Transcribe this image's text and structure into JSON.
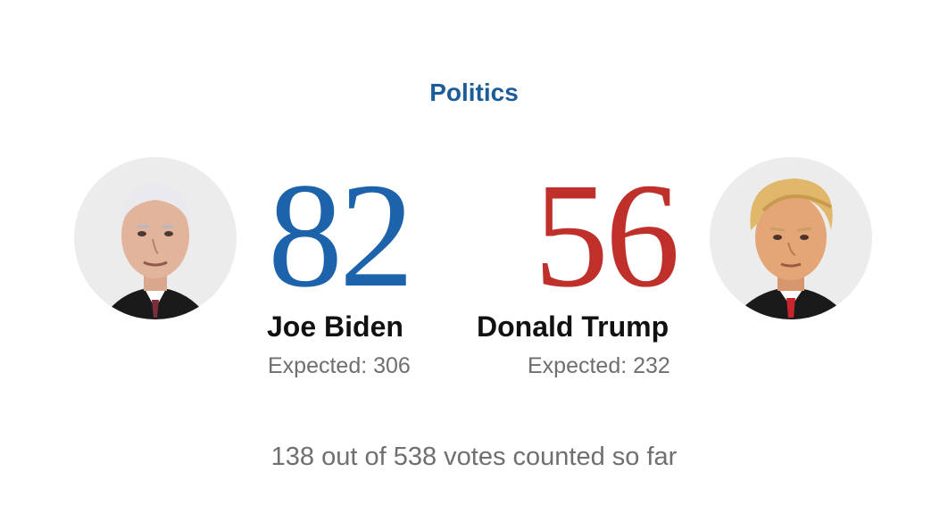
{
  "section": {
    "label": "Politics"
  },
  "colors": {
    "section": "#1c5d99",
    "biden": "#1c63ab",
    "trump": "#c0302b"
  },
  "candidates": [
    {
      "name": "Joe Biden",
      "votes": "82",
      "expected": "Expected: 306",
      "portrait_icon": "biden-portrait-icon"
    },
    {
      "name": "Donald Trump",
      "votes": "56",
      "expected": "Expected: 232",
      "portrait_icon": "trump-portrait-icon"
    }
  ],
  "footer": {
    "text": "138 out of 538 votes counted so far"
  }
}
